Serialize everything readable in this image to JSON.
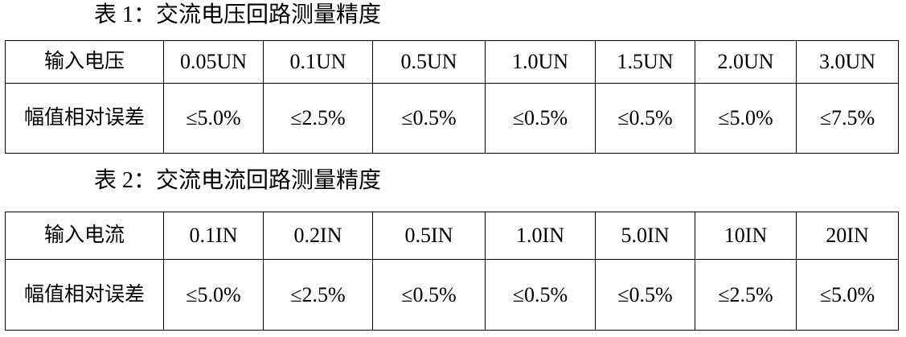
{
  "tables": [
    {
      "title": "表 1：交流电压回路测量精度",
      "row_headers": [
        "输入电压",
        "幅值相对误差"
      ],
      "columns": [
        "0.05UN",
        "0.1UN",
        "0.5UN",
        "1.0UN",
        "1.5UN",
        "2.0UN",
        "3.0UN"
      ],
      "values": [
        "≤5.0%",
        "≤2.5%",
        "≤0.5%",
        "≤0.5%",
        "≤0.5%",
        "≤5.0%",
        "≤7.5%"
      ]
    },
    {
      "title": "表 2：交流电流回路测量精度",
      "row_headers": [
        "输入电流",
        "幅值相对误差"
      ],
      "columns": [
        "0.1IN",
        "0.2IN",
        "0.5IN",
        "1.0IN",
        "5.0IN",
        "10IN",
        "20IN"
      ],
      "values": [
        "≤5.0%",
        "≤2.5%",
        "≤0.5%",
        "≤0.5%",
        "≤0.5%",
        "≤2.5%",
        "≤5.0%"
      ]
    }
  ]
}
